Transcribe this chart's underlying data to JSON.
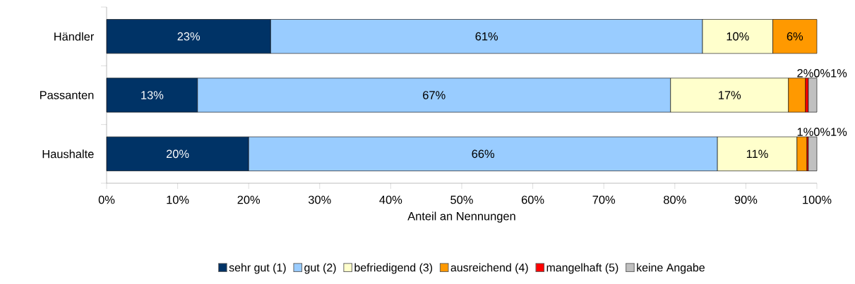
{
  "chart_data": {
    "type": "bar",
    "orientation": "horizontal",
    "stacked": true,
    "xlabel": "Anteil an Nennungen",
    "categories": [
      "Händler",
      "Passanten",
      "Haushalte"
    ],
    "series": [
      {
        "name": "sehr gut (1)",
        "color": "#003366",
        "values": [
          23.1,
          12.8,
          20.0
        ],
        "value_labels": [
          "23%",
          "13%",
          "20%"
        ]
      },
      {
        "name": "gut (2)",
        "color": "#99ccff",
        "values": [
          60.8,
          66.6,
          66.0
        ],
        "value_labels": [
          "61%",
          "67%",
          "66%"
        ]
      },
      {
        "name": "befriedigend (3)",
        "color": "#ffffcc",
        "values": [
          9.9,
          16.6,
          11.2
        ],
        "value_labels": [
          "10%",
          "17%",
          "11%"
        ]
      },
      {
        "name": "ausreichend (4)",
        "color": "#ff9900",
        "values": [
          6.2,
          2.4,
          1.4
        ],
        "value_labels": [
          "6%",
          "2%",
          "1%"
        ]
      },
      {
        "name": "mangelhaft (5)",
        "color": "#ff0000",
        "values": [
          null,
          0.4,
          0.2
        ],
        "value_labels": [
          null,
          "0%",
          "0%"
        ]
      },
      {
        "name": "keine Angabe",
        "color": "#c0c0c0",
        "values": [
          null,
          1.2,
          1.2
        ],
        "value_labels": [
          null,
          "1%",
          "1%"
        ]
      }
    ],
    "xlim": [
      0,
      100
    ],
    "xticks": [
      {
        "value": 0,
        "label": "0%"
      },
      {
        "value": 10,
        "label": "10%"
      },
      {
        "value": 20,
        "label": "20%"
      },
      {
        "value": 30,
        "label": "30%"
      },
      {
        "value": 40,
        "label": "40%"
      },
      {
        "value": 50,
        "label": "50%"
      },
      {
        "value": 60,
        "label": "60%"
      },
      {
        "value": 70,
        "label": "70%"
      },
      {
        "value": 80,
        "label": "80%"
      },
      {
        "value": 90,
        "label": "90%"
      },
      {
        "value": 100,
        "label": "100%"
      }
    ],
    "legend": "bottom",
    "grid": false
  }
}
